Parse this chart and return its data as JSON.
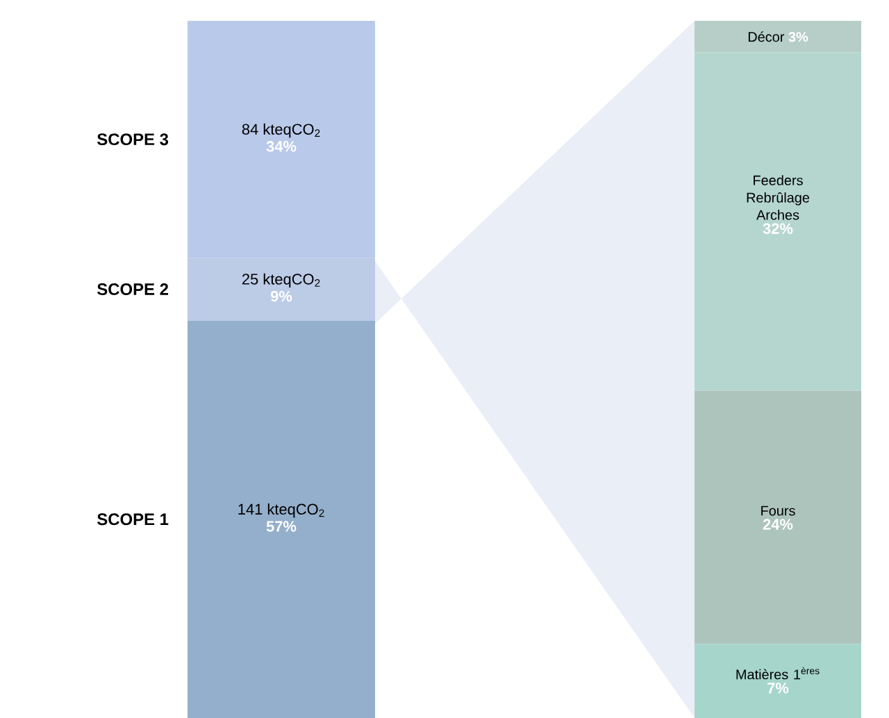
{
  "chart_data": [
    {
      "type": "bar",
      "stacked": true,
      "categories": [
        null
      ],
      "series": [
        {
          "name": "SCOPE 1",
          "color": "#94afcb",
          "values": [
            57
          ],
          "value_labels": [
            "57%"
          ]
        },
        {
          "name": "SCOPE 2",
          "color": "#bccbe6",
          "values": [
            9
          ],
          "value_labels": [
            "9%"
          ]
        },
        {
          "name": "SCOPE 3",
          "color": "#b9c9ea",
          "values": [
            34
          ],
          "value_labels": [
            "34%"
          ]
        }
      ],
      "annotations": [
        "141 kteqCO$_{2}$",
        "25 kteqCO$_{2}$",
        "84 kteqCO$_{2}$"
      ]
    },
    {
      "type": "bar",
      "stacked": true,
      "categories": [
        null
      ],
      "series": [
        {
          "name": "Matières 1$^{ères}$",
          "color": "#a6d5cb",
          "values": [
            7
          ],
          "value_labels": [
            "7%"
          ]
        },
        {
          "name": "Fours",
          "color": "#adc4bd",
          "values": [
            24
          ],
          "value_labels": [
            "24%"
          ]
        },
        {
          "name": "Feeders Rebrûlage Arches",
          "color": "#b5d6cf",
          "values": [
            32
          ],
          "value_labels": [
            "32%"
          ]
        },
        {
          "name": "Décor",
          "color": "#b6cec7",
          "values": [
            3
          ],
          "value_labels": [
            "3%"
          ]
        }
      ]
    }
  ]
}
